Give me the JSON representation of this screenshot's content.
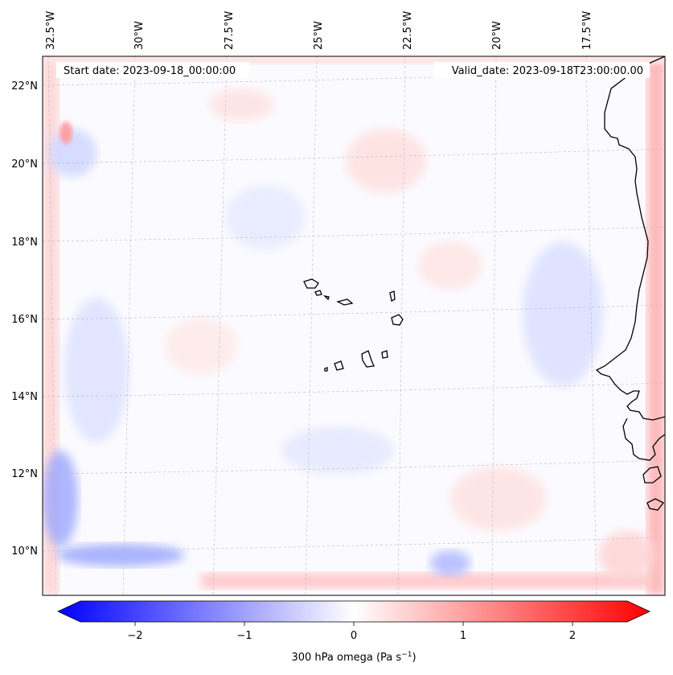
{
  "header": {
    "start_date": "Start date: 2023-09-18_00:00:00",
    "valid_date": "Valid_date: 2023-09-18T23:00:00.00"
  },
  "lon_labels": [
    "32.5°W",
    "30°W",
    "27.5°W",
    "25°W",
    "22.5°W",
    "20°W",
    "17.5°W"
  ],
  "lat_labels": [
    "22°N",
    "20°N",
    "18°N",
    "16°N",
    "14°N",
    "12°N",
    "10°N"
  ],
  "colorbar": {
    "label_main": "300 hPa omega (Pa s",
    "label_sup": "−1",
    "label_end": ")",
    "ticks": [
      "−2",
      "−1",
      "0",
      "1",
      "2"
    ],
    "tick_values": [
      -2,
      -1,
      0,
      1,
      2
    ],
    "range": [
      -2.5,
      2.5
    ],
    "colormap": "bwr",
    "extend": "both"
  },
  "colors": {
    "min": "#0000ff",
    "mid": "#ffffff",
    "max": "#ff0000",
    "coastline": "#000000",
    "gridline": "#b0b0b0"
  }
}
